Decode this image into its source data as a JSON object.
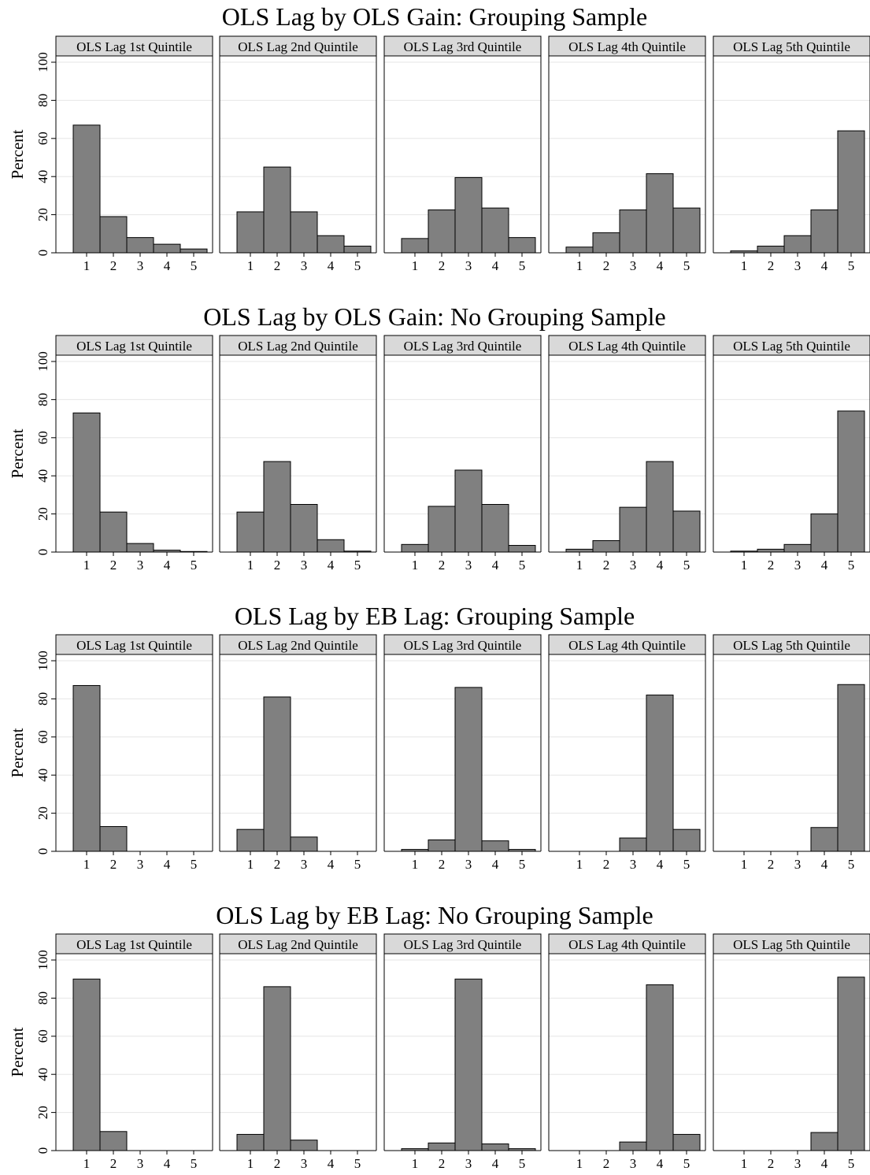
{
  "figure": {
    "y_axis_label": "Percent",
    "y_ticks": [
      0,
      20,
      40,
      60,
      80,
      100
    ],
    "x_ticks": [
      1,
      2,
      3,
      4,
      5
    ],
    "colors": {
      "bar_fill": "#808080",
      "bar_stroke": "#000000",
      "strip_fill": "#d9d9d9",
      "gridline": "#e6e6e6",
      "panel_border": "#000000"
    },
    "strip_labels": [
      "OLS Lag 1st Quintile",
      "OLS Lag 2nd Quintile",
      "OLS Lag 3rd Quintile",
      "OLS Lag 4th Quintile",
      "OLS Lag 5th Quintile"
    ]
  },
  "chart_data": [
    {
      "type": "bar",
      "title": "OLS Lag by OLS Gain: Grouping Sample",
      "ylabel": "Percent",
      "ylim": [
        0,
        100
      ],
      "categories": [
        "1",
        "2",
        "3",
        "4",
        "5"
      ],
      "grid": true,
      "panels": [
        {
          "label": "OLS Lag 1st Quintile",
          "values": [
            67,
            19,
            8,
            4.5,
            2
          ]
        },
        {
          "label": "OLS Lag 2nd Quintile",
          "values": [
            21.5,
            45,
            21.5,
            9,
            3.5
          ]
        },
        {
          "label": "OLS Lag 3rd Quintile",
          "values": [
            7.5,
            22.5,
            39.5,
            23.5,
            8
          ]
        },
        {
          "label": "OLS Lag 4th Quintile",
          "values": [
            3,
            10.5,
            22.5,
            41.5,
            23.5
          ]
        },
        {
          "label": "OLS Lag 5th Quintile",
          "values": [
            1,
            3.5,
            9,
            22.5,
            64
          ]
        }
      ]
    },
    {
      "type": "bar",
      "title": "OLS Lag by OLS Gain: No Grouping Sample",
      "ylabel": "Percent",
      "ylim": [
        0,
        100
      ],
      "categories": [
        "1",
        "2",
        "3",
        "4",
        "5"
      ],
      "grid": true,
      "panels": [
        {
          "label": "OLS Lag 1st Quintile",
          "values": [
            73,
            21,
            4.5,
            1,
            0.3
          ]
        },
        {
          "label": "OLS Lag 2nd Quintile",
          "values": [
            21,
            47.5,
            25,
            6.5,
            0.5
          ]
        },
        {
          "label": "OLS Lag 3rd Quintile",
          "values": [
            4,
            24,
            43,
            25,
            3.5
          ]
        },
        {
          "label": "OLS Lag 4th Quintile",
          "values": [
            1.5,
            6,
            23.5,
            47.5,
            21.5
          ]
        },
        {
          "label": "OLS Lag 5th Quintile",
          "values": [
            0.5,
            1.5,
            4,
            20,
            74
          ]
        }
      ]
    },
    {
      "type": "bar",
      "title": "OLS Lag by EB Lag: Grouping Sample",
      "ylabel": "Percent",
      "ylim": [
        0,
        100
      ],
      "categories": [
        "1",
        "2",
        "3",
        "4",
        "5"
      ],
      "grid": true,
      "panels": [
        {
          "label": "OLS Lag 1st Quintile",
          "values": [
            87,
            13,
            0,
            0,
            0
          ]
        },
        {
          "label": "OLS Lag 2nd Quintile",
          "values": [
            11.5,
            81,
            7.5,
            0,
            0
          ]
        },
        {
          "label": "OLS Lag 3rd Quintile",
          "values": [
            1,
            6,
            86,
            5.5,
            1
          ]
        },
        {
          "label": "OLS Lag 4th Quintile",
          "values": [
            0,
            0,
            7,
            82,
            11.5
          ]
        },
        {
          "label": "OLS Lag 5th Quintile",
          "values": [
            0,
            0,
            0,
            12.5,
            87.5
          ]
        }
      ]
    },
    {
      "type": "bar",
      "title": "OLS Lag by EB Lag: No Grouping Sample",
      "ylabel": "Percent",
      "ylim": [
        0,
        100
      ],
      "categories": [
        "1",
        "2",
        "3",
        "4",
        "5"
      ],
      "grid": true,
      "panels": [
        {
          "label": "OLS Lag 1st Quintile",
          "values": [
            90,
            10,
            0,
            0,
            0
          ]
        },
        {
          "label": "OLS Lag 2nd Quintile",
          "values": [
            8.5,
            86,
            5.5,
            0,
            0
          ]
        },
        {
          "label": "OLS Lag 3rd Quintile",
          "values": [
            1,
            4,
            90,
            3.5,
            1
          ]
        },
        {
          "label": "OLS Lag 4th Quintile",
          "values": [
            0,
            0,
            4.5,
            87,
            8.5
          ]
        },
        {
          "label": "OLS Lag 5th Quintile",
          "values": [
            0,
            0,
            0,
            9.5,
            91
          ]
        }
      ]
    }
  ]
}
